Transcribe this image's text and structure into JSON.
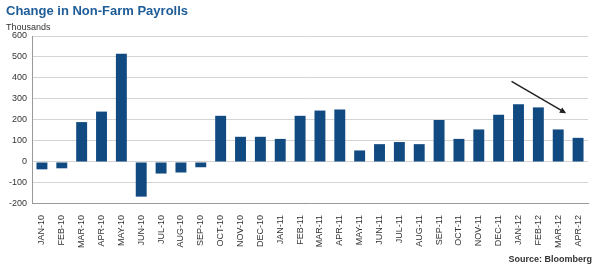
{
  "chart_data": {
    "type": "bar",
    "title": "Change in Non-Farm Payrolls",
    "y_label": "Thousands",
    "source": "Source: Bloomberg",
    "categories": [
      "JAN-10",
      "FEB-10",
      "MAR-10",
      "APR-10",
      "MAY-10",
      "JUN-10",
      "JUL-10",
      "AUG-10",
      "SEP-10",
      "OCT-10",
      "NOV-10",
      "DEC-10",
      "JAN-11",
      "FEB-11",
      "MAR-11",
      "APR-11",
      "MAY-11",
      "JUN-11",
      "JUL-11",
      "AUG-11",
      "SEP-11",
      "OCT-11",
      "NOV-11",
      "DEC-11",
      "JAN-12",
      "FEB-12",
      "MAR-12",
      "APR-12"
    ],
    "values": [
      -35,
      -30,
      190,
      240,
      515,
      -165,
      -55,
      -50,
      -25,
      220,
      120,
      120,
      110,
      220,
      245,
      250,
      55,
      85,
      95,
      85,
      200,
      110,
      155,
      225,
      275,
      260,
      155,
      115
    ],
    "color": "#114a80",
    "ylim": [
      -200,
      600
    ],
    "yticks": [
      -200,
      -100,
      0,
      100,
      200,
      300,
      400,
      500,
      600
    ],
    "grid": true
  }
}
